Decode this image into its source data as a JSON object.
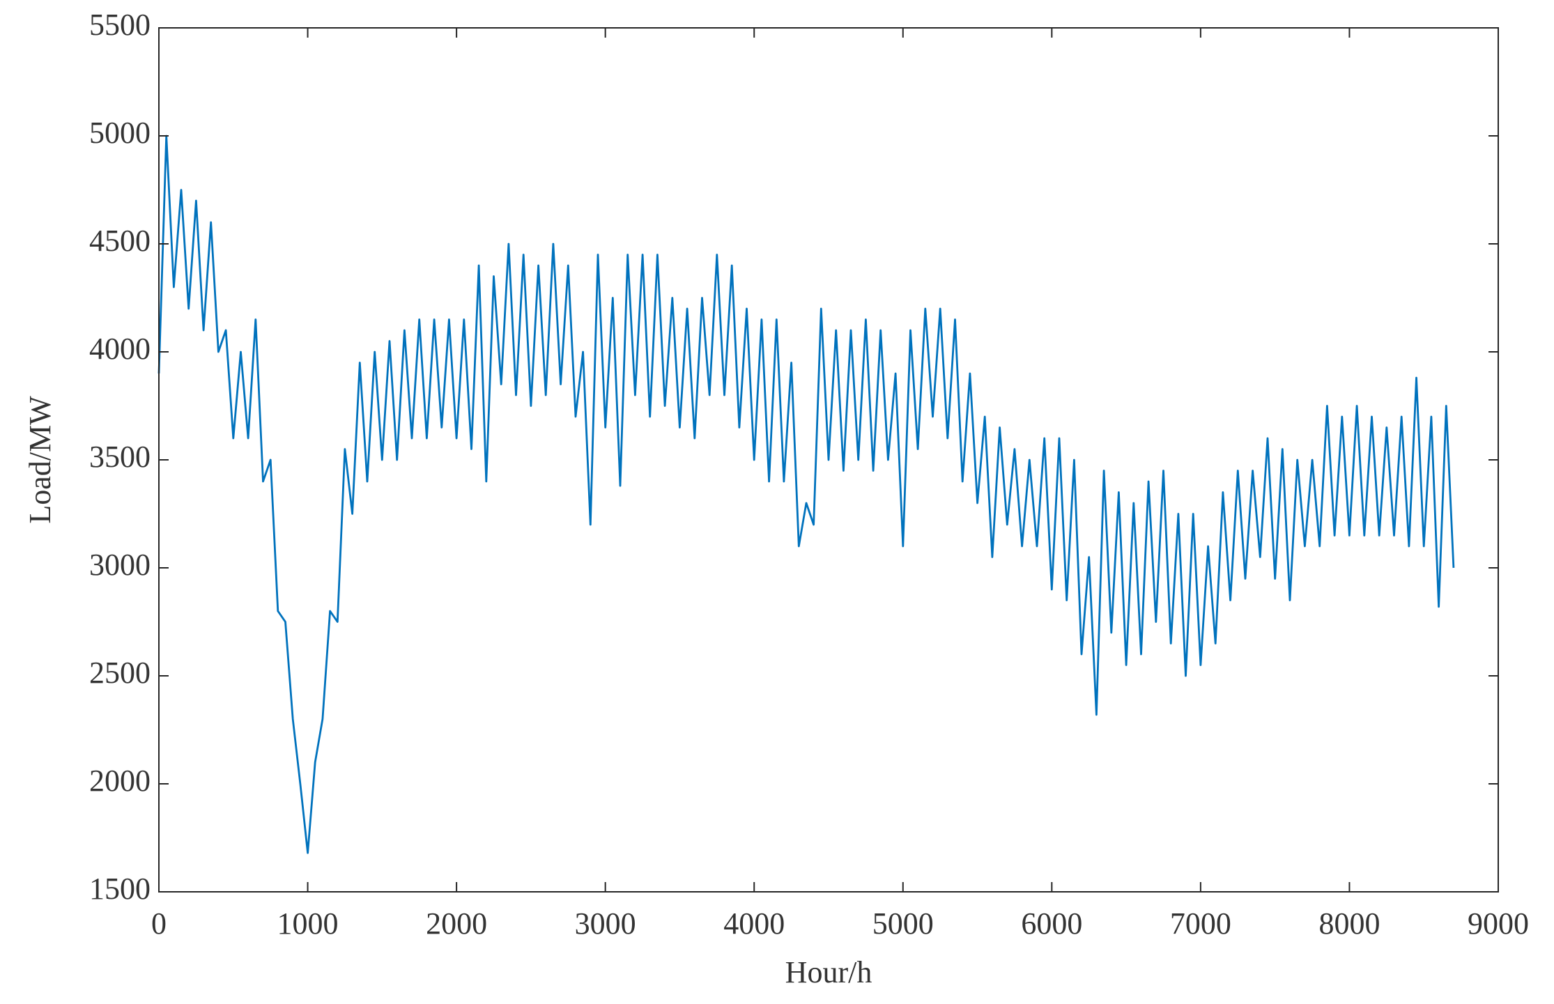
{
  "chart_data": {
    "type": "line",
    "xlabel": "Hour/h",
    "ylabel": "Load/MW",
    "x": [
      0,
      50,
      100,
      150,
      200,
      250,
      300,
      350,
      400,
      450,
      500,
      550,
      600,
      650,
      700,
      750,
      800,
      850,
      900,
      950,
      1000,
      1050,
      1100,
      1150,
      1200,
      1250,
      1300,
      1350,
      1400,
      1450,
      1500,
      1550,
      1600,
      1650,
      1700,
      1750,
      1800,
      1850,
      1900,
      1950,
      2000,
      2050,
      2100,
      2150,
      2200,
      2250,
      2300,
      2350,
      2400,
      2450,
      2500,
      2550,
      2600,
      2650,
      2700,
      2750,
      2800,
      2850,
      2900,
      2950,
      3000,
      3050,
      3100,
      3150,
      3200,
      3250,
      3300,
      3350,
      3400,
      3450,
      3500,
      3550,
      3600,
      3650,
      3700,
      3750,
      3800,
      3850,
      3900,
      3950,
      4000,
      4050,
      4100,
      4150,
      4200,
      4250,
      4300,
      4350,
      4400,
      4450,
      4500,
      4550,
      4600,
      4650,
      4700,
      4750,
      4800,
      4850,
      4900,
      4950,
      5000,
      5050,
      5100,
      5150,
      5200,
      5250,
      5300,
      5350,
      5400,
      5450,
      5500,
      5550,
      5600,
      5650,
      5700,
      5750,
      5800,
      5850,
      5900,
      5950,
      6000,
      6050,
      6100,
      6150,
      6200,
      6250,
      6300,
      6350,
      6400,
      6450,
      6500,
      6550,
      6600,
      6650,
      6700,
      6750,
      6800,
      6850,
      6900,
      6950,
      7000,
      7050,
      7100,
      7150,
      7200,
      7250,
      7300,
      7350,
      7400,
      7450,
      7500,
      7550,
      7600,
      7650,
      7700,
      7750,
      7800,
      7850,
      7900,
      7950,
      8000,
      8050,
      8100,
      8150,
      8200,
      8250,
      8300,
      8350,
      8400,
      8450,
      8500,
      8550,
      8600,
      8650,
      8700
    ],
    "series": [
      {
        "color": "#0072bd",
        "values": [
          3900,
          5000,
          4300,
          4750,
          4200,
          4700,
          4100,
          4600,
          4000,
          4100,
          3600,
          4000,
          3600,
          4150,
          3400,
          3500,
          2800,
          2750,
          2300,
          2000,
          1680,
          2100,
          2300,
          2800,
          2750,
          3550,
          3250,
          3950,
          3400,
          4000,
          3500,
          4050,
          3500,
          4100,
          3600,
          4150,
          3600,
          4150,
          3650,
          4150,
          3600,
          4150,
          3550,
          4400,
          3400,
          4350,
          3850,
          4500,
          3800,
          4450,
          3750,
          4400,
          3800,
          4500,
          3850,
          4400,
          3700,
          4000,
          3200,
          4450,
          3650,
          4250,
          3380,
          4450,
          3800,
          4450,
          3700,
          4450,
          3750,
          4250,
          3650,
          4200,
          3600,
          4250,
          3800,
          4450,
          3800,
          4400,
          3650,
          4200,
          3500,
          4150,
          3400,
          4150,
          3400,
          3950,
          3100,
          3300,
          3200,
          4200,
          3500,
          4100,
          3450,
          4100,
          3500,
          4150,
          3450,
          4100,
          3500,
          3900,
          3100,
          4100,
          3550,
          4200,
          3700,
          4200,
          3600,
          4150,
          3400,
          3900,
          3300,
          3700,
          3050,
          3650,
          3200,
          3550,
          3100,
          3500,
          3100,
          3600,
          2900,
          3600,
          2850,
          3500,
          2600,
          3050,
          2320,
          3450,
          2700,
          3350,
          2550,
          3300,
          2600,
          3400,
          2750,
          3450,
          2650,
          3250,
          2500,
          3250,
          2550,
          3100,
          2650,
          3350,
          2850,
          3450,
          2950,
          3450,
          3050,
          3600,
          2950,
          3550,
          2850,
          3500,
          3100,
          3500,
          3100,
          3750,
          3150,
          3700,
          3150,
          3750,
          3150,
          3700,
          3150,
          3650,
          3150,
          3700,
          3100,
          3880,
          3100,
          3700,
          2820,
          3750,
          3000
        ]
      }
    ],
    "xlim": [
      0,
      9000
    ],
    "xticks": [
      0,
      1000,
      2000,
      3000,
      4000,
      5000,
      6000,
      7000,
      8000,
      9000
    ],
    "ylim": [
      1500,
      5500
    ],
    "yticks": [
      1500,
      2000,
      2500,
      3000,
      3500,
      4000,
      4500,
      5000,
      5500
    ]
  }
}
